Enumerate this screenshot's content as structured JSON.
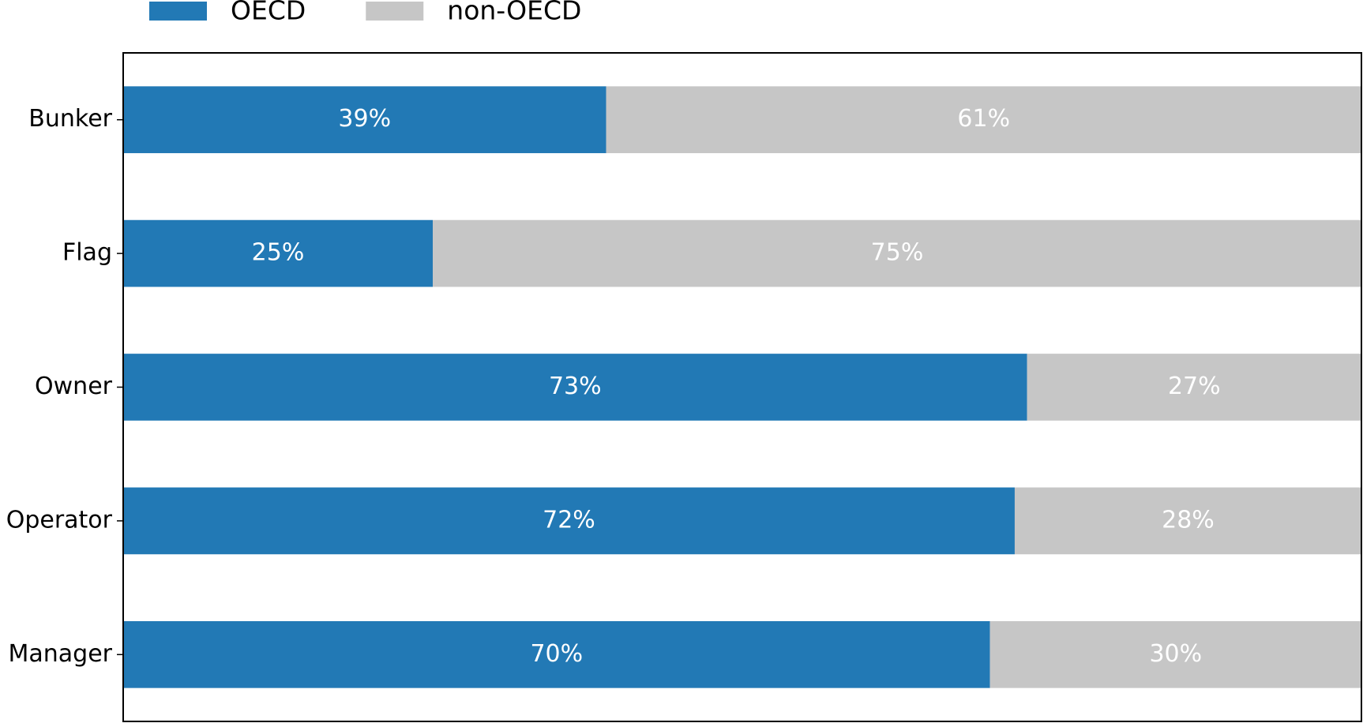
{
  "chart_data": {
    "type": "stacked-barh",
    "categories": [
      "Bunker",
      "Flag",
      "Owner",
      "Operator",
      "Manager"
    ],
    "series": [
      {
        "name": "OECD",
        "color": "#2279b5",
        "values": [
          39,
          25,
          73,
          72,
          70
        ],
        "value_labels": [
          "39%",
          "25%",
          "73%",
          "72%",
          "70%"
        ]
      },
      {
        "name": "non-OECD",
        "color": "#c6c6c6",
        "values": [
          61,
          75,
          27,
          28,
          30
        ],
        "value_labels": [
          "61%",
          "75%",
          "27%",
          "28%",
          "30%"
        ]
      }
    ],
    "xlim": [
      0,
      100
    ],
    "legend": "top"
  }
}
